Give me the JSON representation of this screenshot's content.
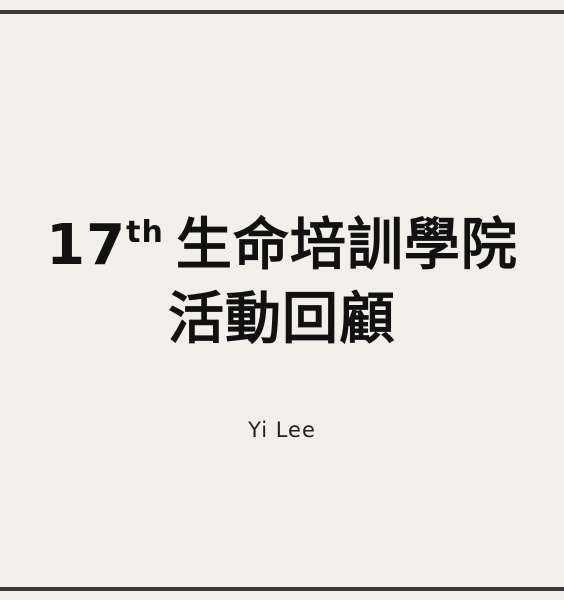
{
  "slide": {
    "title": {
      "ordinal_number": "17",
      "ordinal_suffix": "th",
      "line1_text": "生命培訓學院",
      "line2_text": "活動回顧"
    },
    "author": "Yi  Lee"
  },
  "colors": {
    "background": "#f3f0ec",
    "rule": "#3a3a3a",
    "text": "#111111"
  }
}
